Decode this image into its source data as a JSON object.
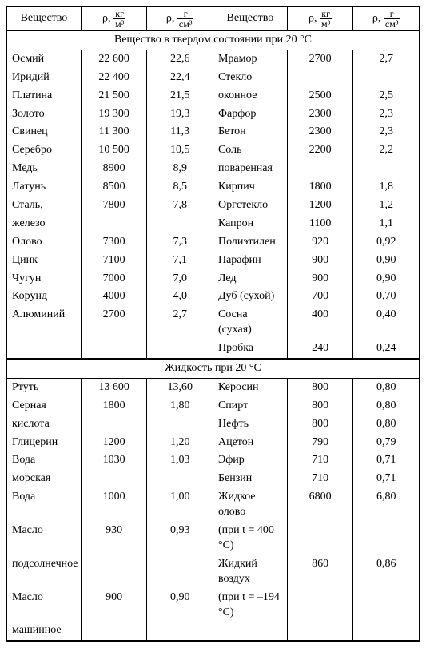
{
  "headers": {
    "substance": "Вещество",
    "rho_kg_m3_prefix": "ρ, ",
    "rho_kg_m3_top": "кг",
    "rho_kg_m3_bot": "м³",
    "rho_g_cm3_prefix": "ρ, ",
    "rho_g_cm3_top": "г",
    "rho_g_cm3_bot": "см³"
  },
  "section_solid": "Вещество в твердом состоянии при 20 °С",
  "section_liquid": "Жидкость при 20 °С",
  "solid_left": [
    {
      "n": "Осмий",
      "a": "22 600",
      "b": "22,6"
    },
    {
      "n": "Иридий",
      "a": "22 400",
      "b": "22,4"
    },
    {
      "n": "Платина",
      "a": "21 500",
      "b": "21,5"
    },
    {
      "n": "Золото",
      "a": "19 300",
      "b": "19,3"
    },
    {
      "n": "Свинец",
      "a": "11 300",
      "b": "11,3"
    },
    {
      "n": "Серебро",
      "a": "10 500",
      "b": "10,5"
    },
    {
      "n": "Медь",
      "a": "8900",
      "b": "8,9"
    },
    {
      "n": "Латунь",
      "a": "8500",
      "b": "8,5"
    },
    {
      "n": "Сталь,",
      "a": "7800",
      "b": "7,8"
    },
    {
      "n": "железо",
      "a": "",
      "b": ""
    },
    {
      "n": "Олово",
      "a": "7300",
      "b": "7,3"
    },
    {
      "n": "Цинк",
      "a": "7100",
      "b": "7,1"
    },
    {
      "n": "Чугун",
      "a": "7000",
      "b": "7,0"
    },
    {
      "n": "Корунд",
      "a": "4000",
      "b": "4,0"
    },
    {
      "n": "Алюминий",
      "a": "2700",
      "b": "2,7"
    },
    {
      "n": "",
      "a": "",
      "b": ""
    }
  ],
  "solid_right": [
    {
      "n": "Мрамор",
      "a": "2700",
      "b": "2,7"
    },
    {
      "n": "Стекло",
      "a": "",
      "b": ""
    },
    {
      "n": "оконное",
      "a": "2500",
      "b": "2,5"
    },
    {
      "n": "Фарфор",
      "a": "2300",
      "b": "2,3"
    },
    {
      "n": "Бетон",
      "a": "2300",
      "b": "2,3"
    },
    {
      "n": "Соль",
      "a": "2200",
      "b": "2,2"
    },
    {
      "n": "поваренная",
      "a": "",
      "b": ""
    },
    {
      "n": "Кирпич",
      "a": "1800",
      "b": "1,8"
    },
    {
      "n": "Оргстекло",
      "a": "1200",
      "b": "1,2"
    },
    {
      "n": "Капрон",
      "a": "1100",
      "b": "1,1"
    },
    {
      "n": "Полиэтилен",
      "a": "920",
      "b": "0,92"
    },
    {
      "n": "Парафин",
      "a": "900",
      "b": "0,90"
    },
    {
      "n": "Лед",
      "a": "900",
      "b": "0,90"
    },
    {
      "n": "Дуб (сухой)",
      "a": "700",
      "b": "0,70"
    },
    {
      "n": "Сосна (сухая)",
      "a": "400",
      "b": "0,40"
    },
    {
      "n": "Пробка",
      "a": "240",
      "b": "0,24"
    }
  ],
  "liquid_left": [
    {
      "n": "Ртуть",
      "a": "13 600",
      "b": "13,60"
    },
    {
      "n": "Серная",
      "a": "1800",
      "b": "1,80"
    },
    {
      "n": "кислота",
      "a": "",
      "b": ""
    },
    {
      "n": "Глицерин",
      "a": "1200",
      "b": "1,20"
    },
    {
      "n": "Вода",
      "a": "1030",
      "b": "1,03"
    },
    {
      "n": "морская",
      "a": "",
      "b": ""
    },
    {
      "n": "Вода",
      "a": "1000",
      "b": "1,00"
    },
    {
      "n": "Масло",
      "a": "930",
      "b": "0,93"
    },
    {
      "n": "подсолнечное",
      "a": "",
      "b": ""
    },
    {
      "n": "Масло",
      "a": "900",
      "b": "0,90"
    },
    {
      "n": "машинное",
      "a": "",
      "b": ""
    }
  ],
  "liquid_right": [
    {
      "n": "Керосин",
      "a": "800",
      "b": "0,80"
    },
    {
      "n": "Спирт",
      "a": "800",
      "b": "0,80"
    },
    {
      "n": "Нефть",
      "a": "800",
      "b": "0,80"
    },
    {
      "n": "Ацетон",
      "a": "790",
      "b": "0,79"
    },
    {
      "n": "Эфир",
      "a": "710",
      "b": "0,71"
    },
    {
      "n": "Бензин",
      "a": "710",
      "b": "0,71"
    },
    {
      "n": "Жидкое олово",
      "a": "6800",
      "b": "6,80"
    },
    {
      "n": "(при t = 400 °С)",
      "a": "",
      "b": ""
    },
    {
      "n": "Жидкий воздух",
      "a": "860",
      "b": "0,86"
    },
    {
      "n": "(при t = –194 °С)",
      "a": "",
      "b": ""
    },
    {
      "n": "",
      "a": "",
      "b": ""
    }
  ]
}
